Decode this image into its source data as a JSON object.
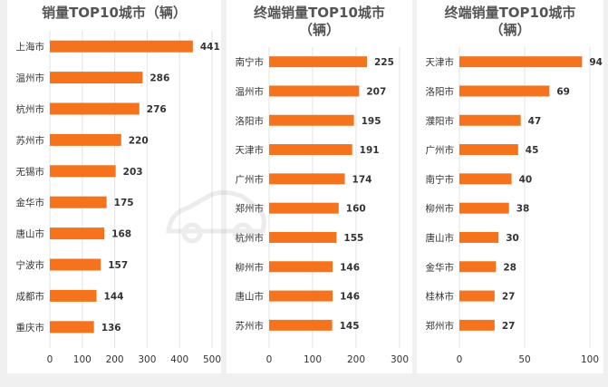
{
  "colors": {
    "bar": "#f6731e",
    "grid": "#e3e3e3",
    "text": "#333333"
  },
  "chart_data": [
    {
      "type": "bar",
      "orientation": "horizontal",
      "title": "销量TOP10城市（辆）",
      "categories": [
        "上海市",
        "温州市",
        "杭州市",
        "苏州市",
        "无锡市",
        "金华市",
        "唐山市",
        "宁波市",
        "成都市",
        "重庆市"
      ],
      "values": [
        441,
        286,
        276,
        220,
        203,
        175,
        168,
        157,
        144,
        136
      ],
      "xlim": [
        0,
        500
      ],
      "xticks": [
        0,
        100,
        200,
        300,
        400,
        500
      ],
      "grid": true
    },
    {
      "type": "bar",
      "orientation": "horizontal",
      "title": "终端销量TOP10城市（辆）",
      "categories": [
        "南宁市",
        "温州市",
        "洛阳市",
        "天津市",
        "广州市",
        "郑州市",
        "杭州市",
        "柳州市",
        "唐山市",
        "苏州市"
      ],
      "values": [
        225,
        207,
        195,
        191,
        174,
        160,
        155,
        146,
        146,
        145
      ],
      "xlim": [
        0,
        300
      ],
      "xticks": [
        0,
        100,
        200,
        300
      ],
      "grid": true
    },
    {
      "type": "bar",
      "orientation": "horizontal",
      "title": "终端销量TOP10城市（辆）",
      "categories": [
        "天津市",
        "洛阳市",
        "濮阳市",
        "广州市",
        "南宁市",
        "柳州市",
        "唐山市",
        "金华市",
        "桂林市",
        "郑州市"
      ],
      "values": [
        94,
        69,
        47,
        45,
        40,
        38,
        30,
        28,
        27,
        27
      ],
      "xlim": [
        0,
        100
      ],
      "xticks": [
        0,
        50,
        100
      ],
      "grid": true
    }
  ]
}
